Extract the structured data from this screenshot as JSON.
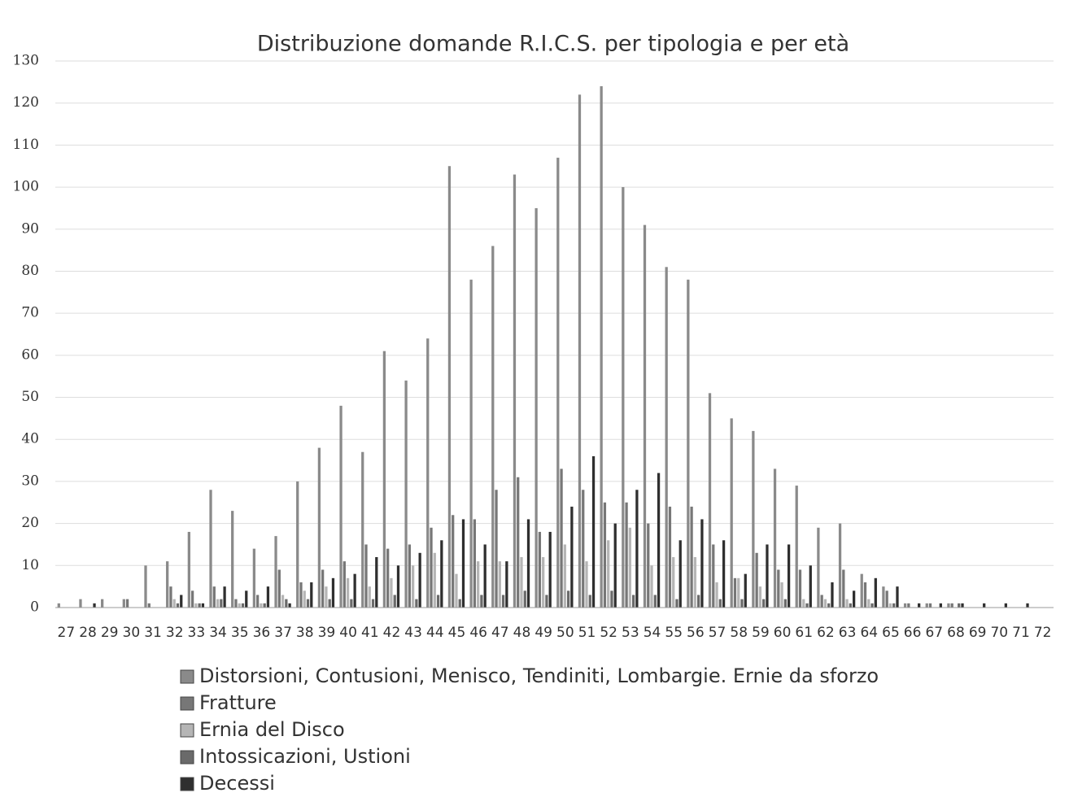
{
  "chart_data": {
    "type": "bar",
    "title": "Distribuzione  domande R.I.C.S. per tipologia e per età",
    "categories": [
      "27",
      "28",
      "29",
      "30",
      "31",
      "32",
      "33",
      "34",
      "35",
      "36",
      "37",
      "38",
      "39",
      "40",
      "41",
      "42",
      "43",
      "44",
      "45",
      "46",
      "47",
      "48",
      "49",
      "50",
      "51",
      "52",
      "53",
      "54",
      "55",
      "56",
      "57",
      "58",
      "59",
      "60",
      "61",
      "62",
      "63",
      "64",
      "65",
      "66",
      "67",
      "68",
      "69",
      "70",
      "71",
      "72"
    ],
    "series": [
      {
        "name": "Distorsioni, Contusioni, Menisco, Tendiniti, Lombargie. Ernie da sforzo",
        "color": "#8a8a8a",
        "values": [
          1,
          2,
          2,
          2,
          10,
          11,
          18,
          28,
          23,
          14,
          17,
          30,
          38,
          48,
          37,
          61,
          54,
          64,
          105,
          78,
          86,
          103,
          95,
          107,
          122,
          124,
          100,
          91,
          81,
          78,
          51,
          45,
          42,
          33,
          29,
          19,
          20,
          8,
          5,
          1,
          1,
          1,
          0,
          0,
          0,
          0
        ]
      },
      {
        "name": "Fratture",
        "color": "#777777",
        "values": [
          0,
          0,
          0,
          2,
          1,
          5,
          4,
          5,
          2,
          3,
          9,
          6,
          9,
          11,
          15,
          14,
          15,
          19,
          22,
          21,
          28,
          31,
          18,
          33,
          28,
          25,
          25,
          20,
          24,
          24,
          15,
          7,
          13,
          9,
          9,
          3,
          9,
          6,
          4,
          1,
          1,
          1,
          0,
          0,
          0,
          0
        ]
      },
      {
        "name": "Ernia del Disco",
        "color": "#b5b5b5",
        "values": [
          0,
          0,
          0,
          0,
          0,
          2,
          1,
          2,
          1,
          1,
          3,
          4,
          5,
          7,
          5,
          7,
          10,
          13,
          8,
          11,
          11,
          12,
          12,
          15,
          11,
          16,
          19,
          10,
          12,
          12,
          6,
          7,
          5,
          6,
          2,
          2,
          2,
          2,
          1,
          0,
          0,
          0,
          0,
          0,
          0,
          0
        ]
      },
      {
        "name": "Intossicazioni, Ustioni",
        "color": "#6a6a6a",
        "values": [
          0,
          0,
          0,
          0,
          0,
          1,
          1,
          2,
          1,
          1,
          2,
          2,
          2,
          2,
          2,
          3,
          2,
          3,
          2,
          3,
          3,
          4,
          3,
          4,
          3,
          4,
          3,
          3,
          2,
          3,
          2,
          2,
          2,
          2,
          1,
          1,
          1,
          1,
          1,
          0,
          0,
          1,
          0,
          0,
          0,
          0
        ]
      },
      {
        "name": "Decessi",
        "color": "#2f2f2f",
        "values": [
          0,
          1,
          0,
          0,
          0,
          3,
          1,
          5,
          4,
          5,
          1,
          6,
          7,
          8,
          12,
          10,
          13,
          16,
          21,
          15,
          11,
          21,
          18,
          24,
          36,
          20,
          28,
          32,
          16,
          21,
          16,
          8,
          15,
          15,
          10,
          6,
          4,
          7,
          5,
          1,
          1,
          1,
          1,
          1,
          1,
          0
        ]
      }
    ],
    "ylim": [
      0,
      130
    ],
    "yticks": [
      0,
      10,
      20,
      30,
      40,
      50,
      60,
      70,
      80,
      90,
      100,
      110,
      120,
      130
    ],
    "grid": true
  }
}
